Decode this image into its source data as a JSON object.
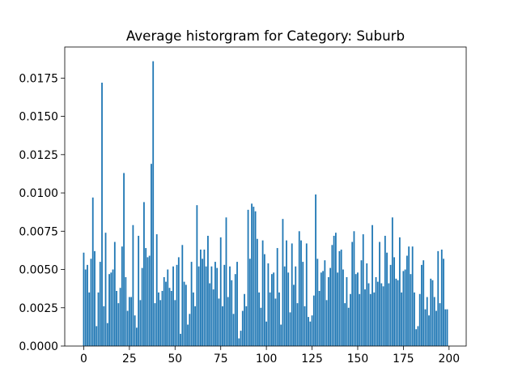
{
  "chart_data": {
    "type": "bar",
    "title": "Average historgram for Category: Suburb",
    "color": "#1f77b4",
    "x": [
      0,
      1,
      2,
      3,
      4,
      5,
      6,
      7,
      8,
      9,
      10,
      11,
      12,
      13,
      14,
      15,
      16,
      17,
      18,
      19,
      20,
      21,
      22,
      23,
      24,
      25,
      26,
      27,
      28,
      29,
      30,
      31,
      32,
      33,
      34,
      35,
      36,
      37,
      38,
      39,
      40,
      41,
      42,
      43,
      44,
      45,
      46,
      47,
      48,
      49,
      50,
      51,
      52,
      53,
      54,
      55,
      56,
      57,
      58,
      59,
      60,
      61,
      62,
      63,
      64,
      65,
      66,
      67,
      68,
      69,
      70,
      71,
      72,
      73,
      74,
      75,
      76,
      77,
      78,
      79,
      80,
      81,
      82,
      83,
      84,
      85,
      86,
      87,
      88,
      89,
      90,
      91,
      92,
      93,
      94,
      95,
      96,
      97,
      98,
      99,
      100,
      101,
      102,
      103,
      104,
      105,
      106,
      107,
      108,
      109,
      110,
      111,
      112,
      113,
      114,
      115,
      116,
      117,
      118,
      119,
      120,
      121,
      122,
      123,
      124,
      125,
      126,
      127,
      128,
      129,
      130,
      131,
      132,
      133,
      134,
      135,
      136,
      137,
      138,
      139,
      140,
      141,
      142,
      143,
      144,
      145,
      146,
      147,
      148,
      149,
      150,
      151,
      152,
      153,
      154,
      155,
      156,
      157,
      158,
      159,
      160,
      161,
      162,
      163,
      164,
      165,
      166,
      167,
      168,
      169,
      170,
      171,
      172,
      173,
      174,
      175,
      176,
      177,
      178,
      179,
      180,
      181,
      182,
      183,
      184,
      185,
      186,
      187,
      188,
      189,
      190,
      191,
      192,
      193,
      194,
      195,
      196,
      197,
      198,
      199
    ],
    "values": [
      0.0061,
      0.005,
      0.0053,
      0.0035,
      0.0057,
      0.0097,
      0.0062,
      0.0013,
      0.0035,
      0.0055,
      0.0172,
      0.0026,
      0.0074,
      0.0015,
      0.0047,
      0.0048,
      0.005,
      0.0068,
      0.0036,
      0.0028,
      0.0038,
      0.0065,
      0.0113,
      0.0045,
      0.0023,
      0.0032,
      0.0032,
      0.0079,
      0.002,
      0.0012,
      0.0072,
      0.003,
      0.0051,
      0.0094,
      0.0064,
      0.0058,
      0.0059,
      0.0119,
      0.0186,
      0.0028,
      0.0073,
      0.0035,
      0.003,
      0.0036,
      0.0045,
      0.0042,
      0.005,
      0.0038,
      0.0036,
      0.0052,
      0.003,
      0.0053,
      0.0058,
      0.0008,
      0.0066,
      0.0042,
      0.004,
      0.0014,
      0.0021,
      0.0055,
      0.0035,
      0.0026,
      0.0092,
      0.0052,
      0.0063,
      0.0057,
      0.0063,
      0.0052,
      0.0072,
      0.0041,
      0.0052,
      0.0037,
      0.0055,
      0.0051,
      0.0031,
      0.0071,
      0.0026,
      0.0053,
      0.0084,
      0.0032,
      0.0052,
      0.0043,
      0.0021,
      0.0047,
      0.0055,
      0.0005,
      0.001,
      0.0023,
      0.0034,
      0.0026,
      0.0089,
      0.0057,
      0.0093,
      0.0091,
      0.0088,
      0.007,
      0.0035,
      0.0025,
      0.0069,
      0.006,
      0.0016,
      0.0054,
      0.0035,
      0.0047,
      0.0048,
      0.0031,
      0.0064,
      0.0035,
      0.0014,
      0.0083,
      0.0052,
      0.0069,
      0.0048,
      0.0022,
      0.0067,
      0.004,
      0.0052,
      0.0028,
      0.0075,
      0.0069,
      0.0055,
      0.0026,
      0.0067,
      0.0019,
      0.0016,
      0.002,
      0.0033,
      0.0099,
      0.0057,
      0.0036,
      0.0048,
      0.0049,
      0.0056,
      0.003,
      0.0045,
      0.0051,
      0.0066,
      0.0072,
      0.0074,
      0.0048,
      0.0062,
      0.0063,
      0.005,
      0.0028,
      0.0045,
      0.0025,
      0.0034,
      0.0068,
      0.0075,
      0.0047,
      0.0048,
      0.0034,
      0.0056,
      0.0073,
      0.0037,
      0.0054,
      0.0041,
      0.0034,
      0.0079,
      0.0035,
      0.0045,
      0.0042,
      0.0068,
      0.0041,
      0.0039,
      0.0072,
      0.0061,
      0.0041,
      0.0053,
      0.0084,
      0.0058,
      0.0044,
      0.0043,
      0.0071,
      0.0035,
      0.0049,
      0.005,
      0.0059,
      0.0065,
      0.0047,
      0.0065,
      0.0035,
      0.0011,
      0.0013,
      0.0034,
      0.0053,
      0.0056,
      0.0024,
      0.0032,
      0.002,
      0.0044,
      0.0043,
      0.0032,
      0.0023,
      0.0062,
      0.0028,
      0.0063,
      0.0057,
      0.0024,
      0.0024
    ],
    "xlim": [
      -10.39,
      209.39
    ],
    "xticks": [
      0,
      25,
      50,
      75,
      100,
      125,
      150,
      175,
      200
    ],
    "ylim": [
      0,
      0.01953
    ],
    "yticks": [
      {
        "value": 0,
        "label": "0.0000"
      },
      {
        "value": 0.0025,
        "label": "0.0025"
      },
      {
        "value": 0.005,
        "label": "0.0050"
      },
      {
        "value": 0.0075,
        "label": "0.0075"
      },
      {
        "value": 0.01,
        "label": "0.0100"
      },
      {
        "value": 0.0125,
        "label": "0.0125"
      },
      {
        "value": 0.015,
        "label": "0.0150"
      },
      {
        "value": 0.0175,
        "label": "0.0175"
      }
    ],
    "grid": false
  }
}
